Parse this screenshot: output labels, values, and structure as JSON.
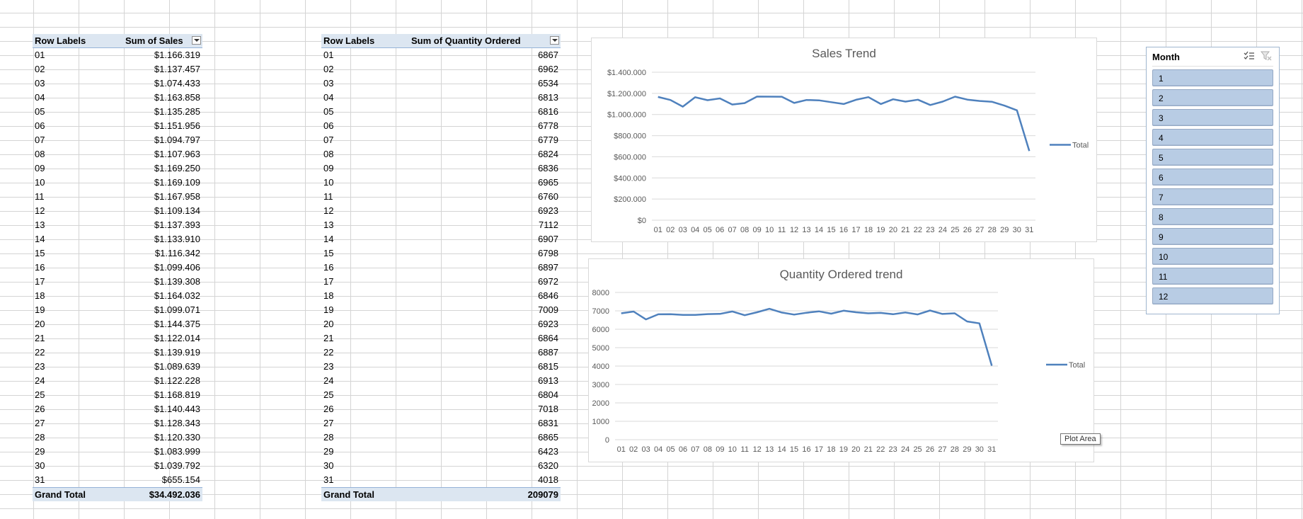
{
  "sales_pivot": {
    "header_label": "Row Labels",
    "header_value": "Sum of Sales",
    "rows": [
      [
        "01",
        "$1.166.319"
      ],
      [
        "02",
        "$1.137.457"
      ],
      [
        "03",
        "$1.074.433"
      ],
      [
        "04",
        "$1.163.858"
      ],
      [
        "05",
        "$1.135.285"
      ],
      [
        "06",
        "$1.151.956"
      ],
      [
        "07",
        "$1.094.797"
      ],
      [
        "08",
        "$1.107.963"
      ],
      [
        "09",
        "$1.169.250"
      ],
      [
        "10",
        "$1.169.109"
      ],
      [
        "11",
        "$1.167.958"
      ],
      [
        "12",
        "$1.109.134"
      ],
      [
        "13",
        "$1.137.393"
      ],
      [
        "14",
        "$1.133.910"
      ],
      [
        "15",
        "$1.116.342"
      ],
      [
        "16",
        "$1.099.406"
      ],
      [
        "17",
        "$1.139.308"
      ],
      [
        "18",
        "$1.164.032"
      ],
      [
        "19",
        "$1.099.071"
      ],
      [
        "20",
        "$1.144.375"
      ],
      [
        "21",
        "$1.122.014"
      ],
      [
        "22",
        "$1.139.919"
      ],
      [
        "23",
        "$1.089.639"
      ],
      [
        "24",
        "$1.122.228"
      ],
      [
        "25",
        "$1.168.819"
      ],
      [
        "26",
        "$1.140.443"
      ],
      [
        "27",
        "$1.128.343"
      ],
      [
        "28",
        "$1.120.330"
      ],
      [
        "29",
        "$1.083.999"
      ],
      [
        "30",
        "$1.039.792"
      ],
      [
        "31",
        "$655.154"
      ]
    ],
    "total_label": "Grand Total",
    "total_value": "$34.492.036"
  },
  "qty_pivot": {
    "header_label": "Row Labels",
    "header_value": "Sum of Quantity Ordered",
    "rows": [
      [
        "01",
        "6867"
      ],
      [
        "02",
        "6962"
      ],
      [
        "03",
        "6534"
      ],
      [
        "04",
        "6813"
      ],
      [
        "05",
        "6816"
      ],
      [
        "06",
        "6778"
      ],
      [
        "07",
        "6779"
      ],
      [
        "08",
        "6824"
      ],
      [
        "09",
        "6836"
      ],
      [
        "10",
        "6965"
      ],
      [
        "11",
        "6760"
      ],
      [
        "12",
        "6923"
      ],
      [
        "13",
        "7112"
      ],
      [
        "14",
        "6907"
      ],
      [
        "15",
        "6798"
      ],
      [
        "16",
        "6897"
      ],
      [
        "17",
        "6972"
      ],
      [
        "18",
        "6846"
      ],
      [
        "19",
        "7009"
      ],
      [
        "20",
        "6923"
      ],
      [
        "21",
        "6864"
      ],
      [
        "22",
        "6887"
      ],
      [
        "23",
        "6815"
      ],
      [
        "24",
        "6913"
      ],
      [
        "25",
        "6804"
      ],
      [
        "26",
        "7018"
      ],
      [
        "27",
        "6831"
      ],
      [
        "28",
        "6865"
      ],
      [
        "29",
        "6423"
      ],
      [
        "30",
        "6320"
      ],
      [
        "31",
        "4018"
      ]
    ],
    "total_label": "Grand Total",
    "total_value": "209079"
  },
  "chart_data": [
    {
      "type": "line",
      "title": "Sales Trend",
      "categories": [
        "01",
        "02",
        "03",
        "04",
        "05",
        "06",
        "07",
        "08",
        "09",
        "10",
        "11",
        "12",
        "13",
        "14",
        "15",
        "16",
        "17",
        "18",
        "19",
        "20",
        "21",
        "22",
        "23",
        "24",
        "25",
        "26",
        "27",
        "28",
        "29",
        "30",
        "31"
      ],
      "series": [
        {
          "name": "Total",
          "values": [
            1166319,
            1137457,
            1074433,
            1163858,
            1135285,
            1151956,
            1094797,
            1107963,
            1169250,
            1169109,
            1167958,
            1109134,
            1137393,
            1133910,
            1116342,
            1099406,
            1139308,
            1164032,
            1099071,
            1144375,
            1122014,
            1139919,
            1089639,
            1122228,
            1168819,
            1140443,
            1128343,
            1120330,
            1083999,
            1039792,
            655154
          ]
        }
      ],
      "yticks": [
        "$0",
        "$200.000",
        "$400.000",
        "$600.000",
        "$800.000",
        "$1.000.000",
        "$1.200.000",
        "$1.400.000"
      ],
      "ylim": [
        0,
        1400000
      ],
      "legend": "right",
      "grid": true,
      "color": "#4f81bd"
    },
    {
      "type": "line",
      "title": "Quantity Ordered trend",
      "categories": [
        "01",
        "02",
        "03",
        "04",
        "05",
        "06",
        "07",
        "08",
        "09",
        "10",
        "11",
        "12",
        "13",
        "14",
        "15",
        "16",
        "17",
        "18",
        "19",
        "20",
        "21",
        "22",
        "23",
        "24",
        "25",
        "26",
        "27",
        "28",
        "29",
        "30",
        "31"
      ],
      "series": [
        {
          "name": "Total",
          "values": [
            6867,
            6962,
            6534,
            6813,
            6816,
            6778,
            6779,
            6824,
            6836,
            6965,
            6760,
            6923,
            7112,
            6907,
            6798,
            6897,
            6972,
            6846,
            7009,
            6923,
            6864,
            6887,
            6815,
            6913,
            6804,
            7018,
            6831,
            6865,
            6423,
            6320,
            4018
          ]
        }
      ],
      "yticks": [
        "0",
        "1000",
        "2000",
        "3000",
        "4000",
        "5000",
        "6000",
        "7000",
        "8000"
      ],
      "ylim": [
        0,
        8000
      ],
      "legend": "right",
      "grid": true,
      "color": "#4f81bd"
    }
  ],
  "tooltip": "Plot Area",
  "slicer": {
    "title": "Month",
    "items": [
      "1",
      "2",
      "3",
      "4",
      "5",
      "6",
      "7",
      "8",
      "9",
      "10",
      "11",
      "12"
    ],
    "multi_select_icon": "multi-select-icon",
    "clear_filter_icon": "clear-filter-icon"
  }
}
